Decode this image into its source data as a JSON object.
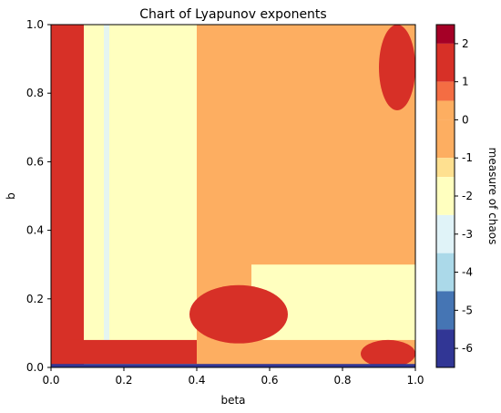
{
  "chart_data": {
    "type": "heatmap",
    "title": "Chart of Lyapunov exponents",
    "xlabel": "beta",
    "ylabel": "b",
    "xlim": [
      0.0,
      1.0
    ],
    "ylim": [
      0.0,
      1.0
    ],
    "x_ticks": [
      "0.0",
      "0.2",
      "0.4",
      "0.6",
      "0.8",
      "1.0"
    ],
    "y_ticks": [
      "0.0",
      "0.2",
      "0.4",
      "0.6",
      "0.8",
      "1.0"
    ],
    "grid": false,
    "colorbar": {
      "label": "measure of chaos",
      "ticks": [
        "2",
        "1",
        "0",
        "-1",
        "-2",
        "-3",
        "-4",
        "-5",
        "-6"
      ],
      "levels": [
        {
          "range": [
            2,
            2.5
          ],
          "color": "#a50026"
        },
        {
          "range": [
            1,
            2
          ],
          "color": "#d73027"
        },
        {
          "range": [
            0.5,
            1
          ],
          "color": "#f46d43"
        },
        {
          "range": [
            0,
            0.5
          ],
          "color": "#fdae61"
        },
        {
          "range": [
            -1,
            0
          ],
          "color": "#fdae61"
        },
        {
          "range": [
            -1.5,
            -1
          ],
          "color": "#fee090"
        },
        {
          "range": [
            -2.5,
            -1.5
          ],
          "color": "#ffffbf"
        },
        {
          "range": [
            -3.5,
            -2.5
          ],
          "color": "#e0f3f8"
        },
        {
          "range": [
            -4.5,
            -3.5
          ],
          "color": "#abd9e9"
        },
        {
          "range": [
            -5.5,
            -4.5
          ],
          "color": "#4575b4"
        },
        {
          "range": [
            -6.5,
            -5.5
          ],
          "color": "#313695"
        }
      ]
    },
    "regions": [
      {
        "name": "chaotic strip near beta=0",
        "beta": [
          0.0,
          0.09
        ],
        "b": [
          0.0,
          1.0
        ],
        "value": 1.5
      },
      {
        "name": "upper-right chaotic region",
        "beta": [
          0.9,
          1.0
        ],
        "b": [
          0.75,
          1.0
        ],
        "value": 1.5
      },
      {
        "name": "central chaotic blob",
        "beta": [
          0.38,
          0.65
        ],
        "b": [
          0.07,
          0.24
        ],
        "value": 1.5
      },
      {
        "name": "bottom-right chaotic region",
        "beta": [
          0.85,
          1.0
        ],
        "b": [
          0.0,
          0.08
        ],
        "value": 1.5
      },
      {
        "name": "bottom-left chaotic band",
        "beta": [
          0.05,
          0.4
        ],
        "b": [
          0.01,
          0.08
        ],
        "value": 1.5
      },
      {
        "name": "pale-yellow band",
        "beta": [
          0.09,
          0.4
        ],
        "b": [
          0.0,
          1.0
        ],
        "value": -2
      },
      {
        "name": "orange upper region",
        "beta": [
          0.4,
          0.95
        ],
        "b": [
          0.3,
          1.0
        ],
        "value": -0.5
      },
      {
        "name": "pale-yellow lower-right region",
        "beta": [
          0.55,
          1.0
        ],
        "b": [
          0.08,
          0.3
        ],
        "value": -2
      },
      {
        "name": "light-blue streak",
        "beta": [
          0.1,
          0.3
        ],
        "b": [
          0.05,
          1.0
        ],
        "value": -3
      },
      {
        "name": "dark-blue bottom edge",
        "beta": [
          0.0,
          1.0
        ],
        "b": [
          0.0,
          0.01
        ],
        "value": -6
      }
    ]
  }
}
